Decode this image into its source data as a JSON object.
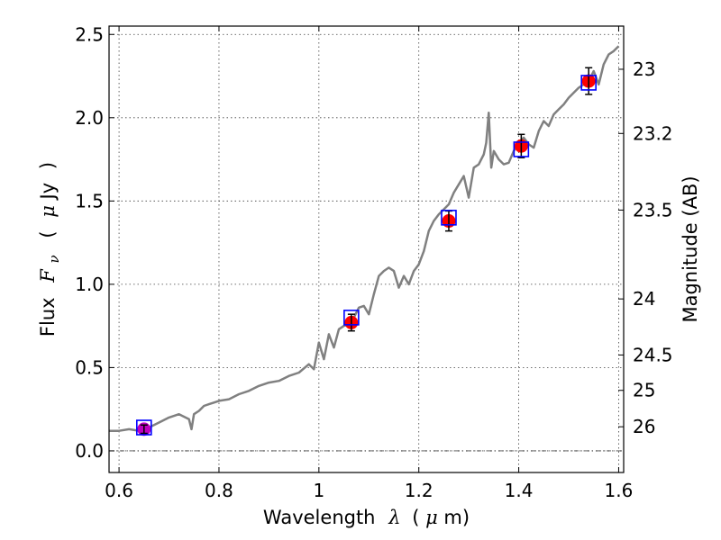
{
  "chart_data": {
    "type": "scatter",
    "xlabel": {
      "text": "Wavelength",
      "lambda": "λ",
      "unit_open": "(",
      "mu": "μ",
      "unit": "m)"
    },
    "ylabel": {
      "text": "Flux",
      "F": "F",
      "nu": "ν",
      "unit_open": "(",
      "mu": "μ",
      "unit": "Jy",
      "unit_close": ")"
    },
    "y2label": "Magnitude (AB)",
    "xlim": [
      0.58,
      1.61
    ],
    "ylim": [
      -0.13,
      2.55
    ],
    "grid": true,
    "x_ticks": [
      {
        "v": 0.6,
        "label": "0.6"
      },
      {
        "v": 0.8,
        "label": "0.8"
      },
      {
        "v": 1.0,
        "label": "1"
      },
      {
        "v": 1.2,
        "label": "1.2"
      },
      {
        "v": 1.4,
        "label": "1.4"
      },
      {
        "v": 1.6,
        "label": "1.6"
      }
    ],
    "y_ticks": [
      {
        "v": 0.0,
        "label": "0.0"
      },
      {
        "v": 0.5,
        "label": "0.5"
      },
      {
        "v": 1.0,
        "label": "1.0"
      },
      {
        "v": 1.5,
        "label": "1.5"
      },
      {
        "v": 2.0,
        "label": "2.0"
      },
      {
        "v": 2.5,
        "label": "2.5"
      }
    ],
    "mag_ticks": [
      {
        "mag": 23.0,
        "label": "23"
      },
      {
        "mag": 23.2,
        "label": "23.2"
      },
      {
        "mag": 23.5,
        "label": "23.5"
      },
      {
        "mag": 24.0,
        "label": "24"
      },
      {
        "mag": 24.5,
        "label": "24.5"
      },
      {
        "mag": 25.0,
        "label": "25"
      },
      {
        "mag": 26.0,
        "label": "26"
      }
    ],
    "zero_line": 0.0,
    "spectrum": {
      "color": "#808080",
      "x": [
        0.58,
        0.6,
        0.62,
        0.64,
        0.66,
        0.68,
        0.7,
        0.72,
        0.74,
        0.745,
        0.75,
        0.76,
        0.77,
        0.78,
        0.79,
        0.8,
        0.82,
        0.84,
        0.86,
        0.88,
        0.9,
        0.92,
        0.94,
        0.96,
        0.98,
        0.99,
        1.0,
        1.01,
        1.02,
        1.03,
        1.04,
        1.05,
        1.06,
        1.07,
        1.08,
        1.09,
        1.1,
        1.11,
        1.12,
        1.13,
        1.14,
        1.15,
        1.16,
        1.17,
        1.18,
        1.19,
        1.2,
        1.21,
        1.22,
        1.23,
        1.24,
        1.25,
        1.26,
        1.27,
        1.28,
        1.29,
        1.3,
        1.31,
        1.32,
        1.33,
        1.335,
        1.34,
        1.345,
        1.35,
        1.36,
        1.37,
        1.38,
        1.39,
        1.4,
        1.41,
        1.42,
        1.43,
        1.44,
        1.45,
        1.46,
        1.47,
        1.48,
        1.49,
        1.5,
        1.51,
        1.52,
        1.53,
        1.54,
        1.55,
        1.56,
        1.57,
        1.58,
        1.59,
        1.6
      ],
      "y": [
        0.12,
        0.12,
        0.13,
        0.12,
        0.14,
        0.17,
        0.2,
        0.22,
        0.19,
        0.13,
        0.22,
        0.24,
        0.27,
        0.28,
        0.29,
        0.3,
        0.31,
        0.34,
        0.36,
        0.39,
        0.41,
        0.42,
        0.45,
        0.47,
        0.52,
        0.49,
        0.65,
        0.55,
        0.7,
        0.62,
        0.73,
        0.75,
        0.76,
        0.8,
        0.86,
        0.87,
        0.82,
        0.94,
        1.05,
        1.08,
        1.1,
        1.08,
        0.98,
        1.05,
        1.0,
        1.08,
        1.12,
        1.2,
        1.32,
        1.38,
        1.42,
        1.45,
        1.48,
        1.55,
        1.6,
        1.65,
        1.52,
        1.7,
        1.72,
        1.78,
        1.85,
        2.03,
        1.7,
        1.8,
        1.75,
        1.72,
        1.73,
        1.8,
        1.85,
        1.88,
        1.84,
        1.82,
        1.92,
        1.98,
        1.95,
        2.02,
        2.05,
        2.08,
        2.12,
        2.15,
        2.18,
        2.2,
        2.22,
        2.28,
        2.2,
        2.32,
        2.38,
        2.4,
        2.43
      ]
    },
    "photometry": [
      {
        "x": 0.65,
        "y": 0.13,
        "err": 0.025,
        "box": 0.14
      },
      {
        "x": 1.065,
        "y": 0.77,
        "err": 0.05,
        "box": 0.8
      },
      {
        "x": 1.26,
        "y": 1.38,
        "err": 0.06,
        "box": 1.4
      },
      {
        "x": 1.405,
        "y": 1.83,
        "err": 0.07,
        "box": 1.81
      },
      {
        "x": 1.54,
        "y": 2.22,
        "err": 0.08,
        "box": 2.21
      }
    ],
    "colors": {
      "observed": "#ff0000",
      "first_point": "#bf00bf",
      "model_box": "#0000ff",
      "errorbar": "#000000"
    }
  }
}
